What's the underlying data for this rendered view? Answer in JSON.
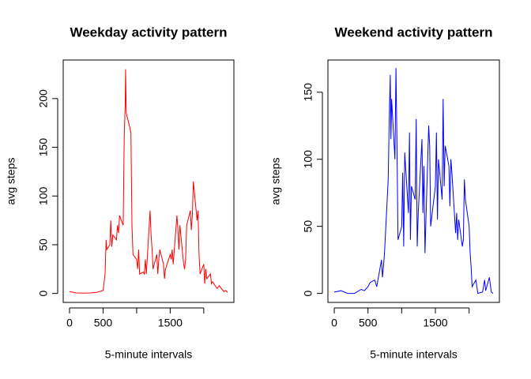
{
  "chart_data": [
    {
      "type": "line",
      "title": "Weekday activity pattern",
      "xlabel": "5-minute intervals",
      "ylabel": "avg steps",
      "color": "#ff0000",
      "xlim": [
        -94.2,
        2449.2
      ],
      "xticks": [
        0,
        500,
        {
          "value": 1000,
          "label": null
        },
        1500,
        {
          "value": 2000,
          "label": null
        }
      ],
      "ylim": [
        -9.2,
        239.6
      ],
      "yticks": [
        0,
        50,
        100,
        150,
        200
      ],
      "x": [
        0,
        100,
        200,
        300,
        400,
        500,
        530,
        545,
        555,
        600,
        615,
        630,
        645,
        700,
        715,
        730,
        745,
        800,
        815,
        830,
        835,
        845,
        900,
        915,
        930,
        945,
        1000,
        1015,
        1030,
        1045,
        1100,
        1115,
        1130,
        1145,
        1200,
        1215,
        1230,
        1245,
        1300,
        1315,
        1330,
        1345,
        1400,
        1415,
        1430,
        1500,
        1515,
        1530,
        1545,
        1600,
        1615,
        1630,
        1645,
        1700,
        1715,
        1730,
        1745,
        1800,
        1815,
        1830,
        1845,
        1900,
        1915,
        1930,
        1945,
        2000,
        2015,
        2030,
        2045,
        2100,
        2115,
        2130,
        2200,
        2230,
        2300,
        2330,
        2355
      ],
      "values": [
        2,
        0.5,
        0.3,
        0.5,
        1,
        3,
        20,
        55,
        45,
        50,
        75,
        48,
        60,
        55,
        70,
        62,
        80,
        70,
        160,
        195,
        230,
        185,
        170,
        165,
        70,
        40,
        35,
        25,
        45,
        20,
        22,
        20,
        35,
        20,
        85,
        60,
        45,
        25,
        40,
        20,
        35,
        45,
        30,
        15,
        25,
        40,
        35,
        45,
        30,
        80,
        65,
        45,
        70,
        30,
        25,
        35,
        70,
        85,
        65,
        80,
        115,
        75,
        85,
        40,
        20,
        30,
        10,
        25,
        15,
        20,
        10,
        12,
        5,
        8,
        2,
        3,
        1
      ]
    },
    {
      "type": "line",
      "title": "Weekend activity pattern",
      "xlabel": "5-minute intervals",
      "ylabel": "avg steps",
      "color": "#0000ff",
      "xlim": [
        -94.2,
        2449.2
      ],
      "xticks": [
        0,
        500,
        {
          "value": 1000,
          "label": null
        },
        1500,
        {
          "value": 2000,
          "label": null
        }
      ],
      "ylim": [
        -6.7,
        174
      ],
      "yticks": [
        0,
        50,
        100,
        150
      ],
      "x": [
        0,
        100,
        200,
        300,
        400,
        445,
        500,
        530,
        600,
        630,
        700,
        715,
        730,
        745,
        800,
        815,
        830,
        840,
        850,
        900,
        915,
        930,
        945,
        1000,
        1015,
        1030,
        1045,
        1100,
        1115,
        1130,
        1145,
        1200,
        1215,
        1230,
        1245,
        1300,
        1315,
        1330,
        1345,
        1400,
        1415,
        1430,
        1500,
        1515,
        1530,
        1545,
        1600,
        1615,
        1630,
        1645,
        1700,
        1715,
        1730,
        1745,
        1800,
        1815,
        1830,
        1845,
        1900,
        1915,
        1930,
        1945,
        2000,
        2015,
        2030,
        2045,
        2100,
        2130,
        2200,
        2230,
        2245,
        2300,
        2330,
        2355
      ],
      "values": [
        1,
        2,
        0,
        0,
        3,
        2,
        5,
        8,
        10,
        5,
        25,
        12,
        20,
        30,
        85,
        130,
        163,
        115,
        145,
        100,
        168,
        110,
        40,
        50,
        90,
        35,
        105,
        60,
        120,
        40,
        80,
        70,
        130,
        35,
        60,
        115,
        60,
        95,
        30,
        125,
        110,
        50,
        80,
        120,
        55,
        100,
        70,
        145,
        80,
        110,
        95,
        65,
        100,
        90,
        45,
        60,
        40,
        55,
        35,
        40,
        85,
        70,
        50,
        30,
        20,
        5,
        10,
        0,
        1,
        10,
        2,
        12,
        1,
        0
      ]
    }
  ]
}
